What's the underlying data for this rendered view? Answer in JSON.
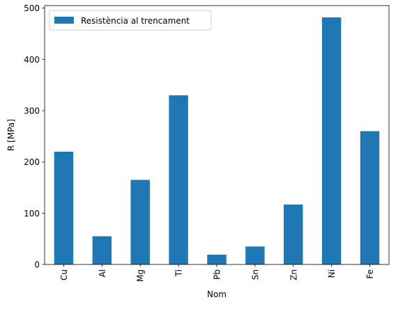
{
  "chart_data": {
    "type": "bar",
    "categories": [
      "Cu",
      "Al",
      "Mg",
      "Ti",
      "Pb",
      "Sn",
      "Zn",
      "Ni",
      "Fe"
    ],
    "series": [
      {
        "name": "Resistència al trencament",
        "values": [
          220,
          55,
          165,
          330,
          19,
          35,
          117,
          482,
          260
        ],
        "color": "#1f77b4"
      }
    ],
    "title": "",
    "xlabel": "Nom",
    "ylabel": "R  [MPa]",
    "ylim": [
      0,
      505
    ],
    "yticks": [
      0,
      100,
      200,
      300,
      400,
      500
    ],
    "grid": false,
    "legend_position": "upper-left"
  }
}
